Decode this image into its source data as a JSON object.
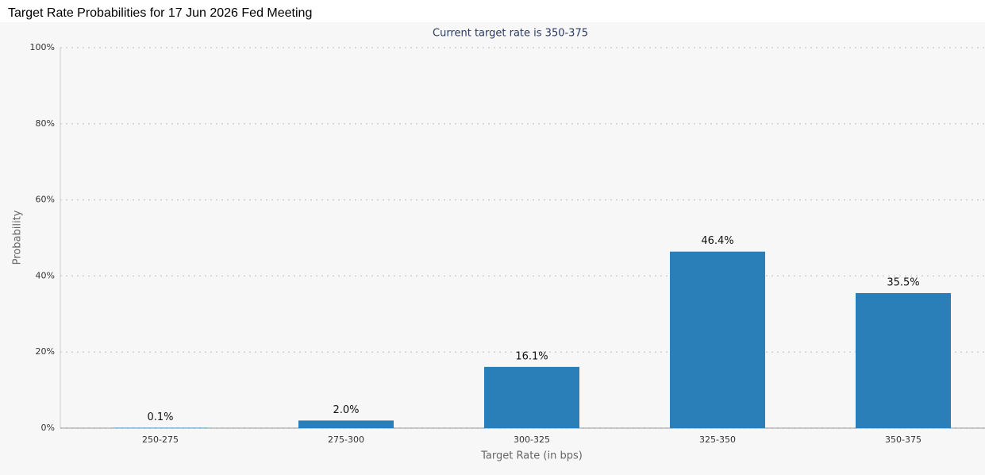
{
  "chart_data": {
    "type": "bar",
    "title": "Target Rate Probabilities for 17 Jun 2026 Fed Meeting",
    "subtitle": "Current target rate is 350-375",
    "x_label": "Target Rate (in bps)",
    "y_label": "Probability",
    "categories": [
      "250-275",
      "275-300",
      "300-325",
      "325-350",
      "350-375"
    ],
    "values": [
      0.1,
      2.0,
      16.1,
      46.4,
      35.5
    ],
    "value_labels": [
      "0.1%",
      "2.0%",
      "16.1%",
      "46.4%",
      "35.5%"
    ],
    "color": "#2a7fb8",
    "ylim": [
      0,
      100
    ],
    "yticks": [
      {
        "value": 0,
        "label": "0%"
      },
      {
        "value": 20,
        "label": "20%"
      },
      {
        "value": 40,
        "label": "40%"
      },
      {
        "value": 60,
        "label": "60%"
      },
      {
        "value": 80,
        "label": "80%"
      },
      {
        "value": 100,
        "label": "100%"
      }
    ],
    "grid": true
  }
}
